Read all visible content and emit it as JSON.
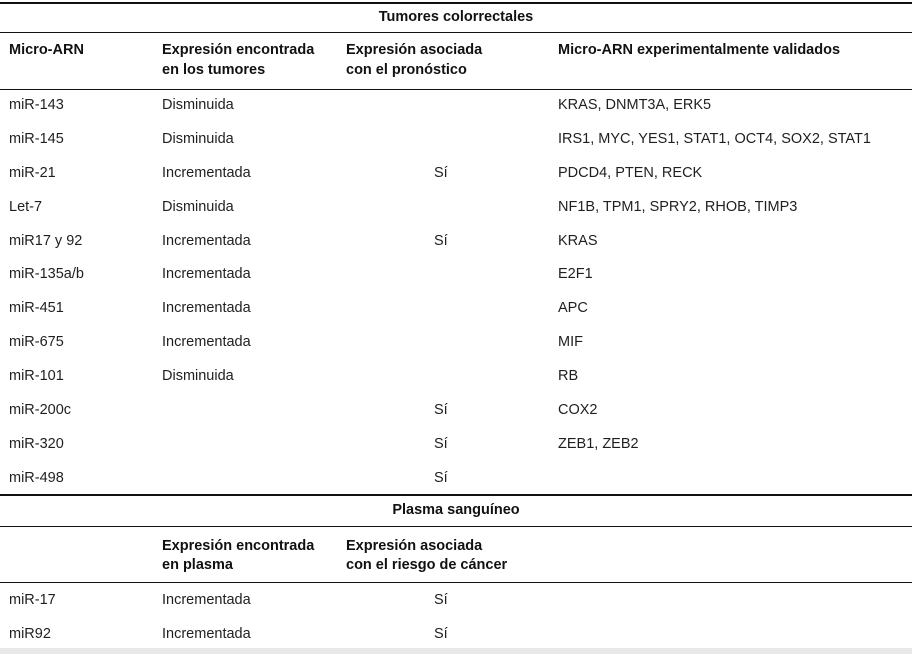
{
  "colorectal": {
    "title": "Tumores colorrectales",
    "headers": {
      "col1": "Micro-ARN",
      "col2_line1": "Expresión encontrada",
      "col2_line2": "en los tumores",
      "col3_line1": "Expresión asociada",
      "col3_line2": "con el pronóstico",
      "col4": "Micro-ARN experimentalmente validados"
    },
    "rows": [
      {
        "mirna": "miR-143",
        "expression": "Disminuida",
        "prognosis": "",
        "validated": "KRAS, DNMT3A, ERK5"
      },
      {
        "mirna": "miR-145",
        "expression": "Disminuida",
        "prognosis": "",
        "validated": "IRS1, MYC, YES1, STAT1, OCT4, SOX2, STAT1"
      },
      {
        "mirna": "miR-21",
        "expression": "Incrementada",
        "prognosis": "Sí",
        "validated": "PDCD4, PTEN, RECK"
      },
      {
        "mirna": "Let-7",
        "expression": "Disminuida",
        "prognosis": "",
        "validated": "NF1B, TPM1, SPRY2, RHOB, TIMP3"
      },
      {
        "mirna": "miR17 y 92",
        "expression": "Incrementada",
        "prognosis": "Sí",
        "validated": "KRAS"
      },
      {
        "mirna": "miR-135a/b",
        "expression": "Incrementada",
        "prognosis": "",
        "validated": "E2F1"
      },
      {
        "mirna": "miR-451",
        "expression": "Incrementada",
        "prognosis": "",
        "validated": "APC"
      },
      {
        "mirna": "miR-675",
        "expression": "Incrementada",
        "prognosis": "",
        "validated": "MIF"
      },
      {
        "mirna": "miR-101",
        "expression": "Disminuida",
        "prognosis": "",
        "validated": "RB"
      },
      {
        "mirna": "miR-200c",
        "expression": "",
        "prognosis": "Sí",
        "validated": "COX2"
      },
      {
        "mirna": "miR-320",
        "expression": "",
        "prognosis": "Sí",
        "validated": "ZEB1, ZEB2"
      },
      {
        "mirna": "miR-498",
        "expression": "",
        "prognosis": "Sí",
        "validated": ""
      }
    ]
  },
  "plasma": {
    "title": "Plasma sanguíneo",
    "headers": {
      "col2_line1": "Expresión encontrada",
      "col2_line2": "en plasma",
      "col3_line1": "Expresión asociada",
      "col3_line2": "con el riesgo de cáncer"
    },
    "rows": [
      {
        "mirna": "miR-17",
        "expression": "Incrementada",
        "risk": "Sí"
      },
      {
        "mirna": "miR92",
        "expression": "Incrementada",
        "risk": "Sí"
      }
    ]
  }
}
